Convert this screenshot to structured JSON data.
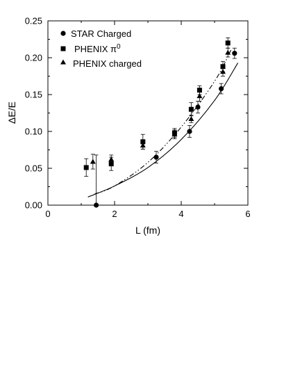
{
  "chart_data": {
    "type": "scatter",
    "title": "",
    "xlabel": "L (fm)",
    "ylabel": "ΔE/E",
    "xlim": [
      0,
      6
    ],
    "ylim": [
      0,
      0.25
    ],
    "x_ticks": [
      "0",
      "2",
      "4",
      "6"
    ],
    "y_ticks": [
      "0.00",
      "0.05",
      "0.10",
      "0.15",
      "0.20",
      "0.25"
    ],
    "grid": false,
    "legend_position": "top-left",
    "series": [
      {
        "name": "STAR Charged",
        "marker": "circle",
        "points": [
          {
            "x": 1.45,
            "y": 0.0,
            "err": 0.068
          },
          {
            "x": 3.25,
            "y": 0.065,
            "err": 0.008
          },
          {
            "x": 4.25,
            "y": 0.1,
            "err": 0.008
          },
          {
            "x": 4.5,
            "y": 0.133,
            "err": 0.008
          },
          {
            "x": 5.2,
            "y": 0.158,
            "err": 0.007
          },
          {
            "x": 5.6,
            "y": 0.206,
            "err": 0.007
          }
        ]
      },
      {
        "name_prefix": "PHENIX ",
        "name_symbol": "π",
        "name_superscript": "0",
        "marker": "square",
        "points": [
          {
            "x": 1.15,
            "y": 0.051,
            "err": 0.012
          },
          {
            "x": 1.9,
            "y": 0.056,
            "err": 0.009
          },
          {
            "x": 2.85,
            "y": 0.086,
            "err": 0.01
          },
          {
            "x": 3.8,
            "y": 0.098,
            "err": 0.006
          },
          {
            "x": 4.3,
            "y": 0.13,
            "err": 0.009
          },
          {
            "x": 4.55,
            "y": 0.156,
            "err": 0.006
          },
          {
            "x": 5.25,
            "y": 0.188,
            "err": 0.007
          },
          {
            "x": 5.4,
            "y": 0.22,
            "err": 0.007
          }
        ]
      },
      {
        "name": "PHENIX charged",
        "marker": "triangle",
        "points": [
          {
            "x": 1.35,
            "y": 0.059,
            "err": 0.01
          },
          {
            "x": 1.9,
            "y": 0.062,
            "err": 0.006
          },
          {
            "x": 2.85,
            "y": 0.081,
            "err": 0.005
          },
          {
            "x": 3.8,
            "y": 0.096,
            "err": 0.006
          },
          {
            "x": 4.3,
            "y": 0.117,
            "err": 0.005
          },
          {
            "x": 4.55,
            "y": 0.148,
            "err": 0.007
          },
          {
            "x": 5.25,
            "y": 0.181,
            "err": 0.006
          },
          {
            "x": 5.4,
            "y": 0.207,
            "err": 0.006
          }
        ]
      }
    ],
    "curves": [
      {
        "style": "solid",
        "points": [
          [
            1.2,
            0.011
          ],
          [
            2.0,
            0.026
          ],
          [
            3.0,
            0.051
          ],
          [
            4.0,
            0.089
          ],
          [
            5.0,
            0.142
          ],
          [
            5.7,
            0.193
          ]
        ]
      },
      {
        "style": "dash-dot",
        "points": [
          [
            1.4,
            0.015
          ],
          [
            2.0,
            0.026
          ],
          [
            3.0,
            0.058
          ],
          [
            4.0,
            0.106
          ],
          [
            5.0,
            0.168
          ],
          [
            5.5,
            0.211
          ]
        ]
      }
    ]
  }
}
